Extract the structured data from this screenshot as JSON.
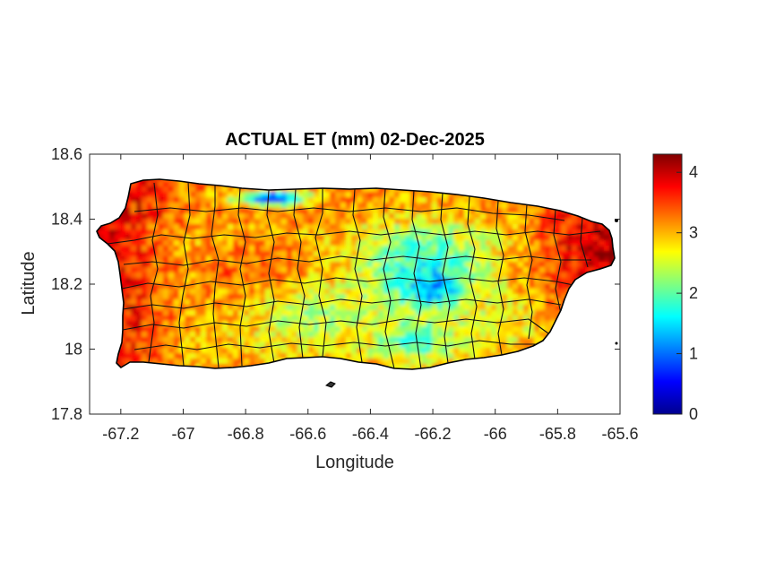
{
  "chart_data": {
    "type": "heatmap",
    "title": "ACTUAL ET (mm) 02-Dec-2025",
    "xlabel": "Longitude",
    "ylabel": "Latitude",
    "xlim": [
      -67.3,
      -65.6
    ],
    "ylim": [
      17.8,
      18.6
    ],
    "xticks": [
      -67.2,
      -67,
      -66.8,
      -66.6,
      -66.4,
      -66.2,
      -66,
      -65.8,
      -65.6
    ],
    "xtick_labels": [
      "-67.2",
      "-67",
      "-66.8",
      "-66.6",
      "-66.4",
      "-66.2",
      "-66",
      "-65.8",
      "-65.6"
    ],
    "yticks": [
      17.8,
      18,
      18.2,
      18.4,
      18.6
    ],
    "ytick_labels": [
      "17.8",
      "18",
      "18.2",
      "18.4",
      "18.6"
    ],
    "colorbar": {
      "colormap": "jet",
      "clim": [
        0,
        4.3
      ],
      "ticks": [
        0,
        1,
        2,
        3,
        4
      ],
      "tick_labels": [
        "0",
        "1",
        "2",
        "3",
        "4"
      ]
    },
    "grid": false,
    "region": "Puerto Rico municipalities",
    "colors": {
      "border": "#000000",
      "axis": "#262626",
      "high": "#d42a00",
      "mid": "#f5e11a",
      "low": "#22b0e6"
    }
  }
}
